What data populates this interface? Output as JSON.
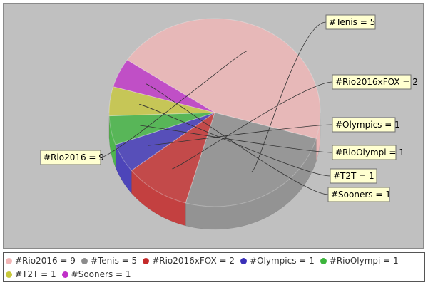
{
  "chart_data": {
    "type": "pie",
    "title": "",
    "categories": [
      "#Rio2016",
      "#Tenis",
      "#Rio2016xFOX",
      "#Olympics",
      "#RioOlympi",
      "#T2T",
      "#Sooners"
    ],
    "values": [
      9,
      5,
      2,
      1,
      1,
      1,
      1
    ],
    "labels": [
      "#Rio2016 = 9",
      "#Tenis = 5",
      "#Rio2016xFOX = 2",
      "#Olympics = 1",
      "#RioOlympi = 1",
      "#T2T = 1",
      "#Sooners = 1"
    ],
    "colors": [
      "#f2b6b6",
      "#8c8c8c",
      "#c42a2a",
      "#3a30b8",
      "#3cb43c",
      "#c8c83a",
      "#c030c8"
    ],
    "legend_position": "bottom",
    "style": "3d"
  }
}
